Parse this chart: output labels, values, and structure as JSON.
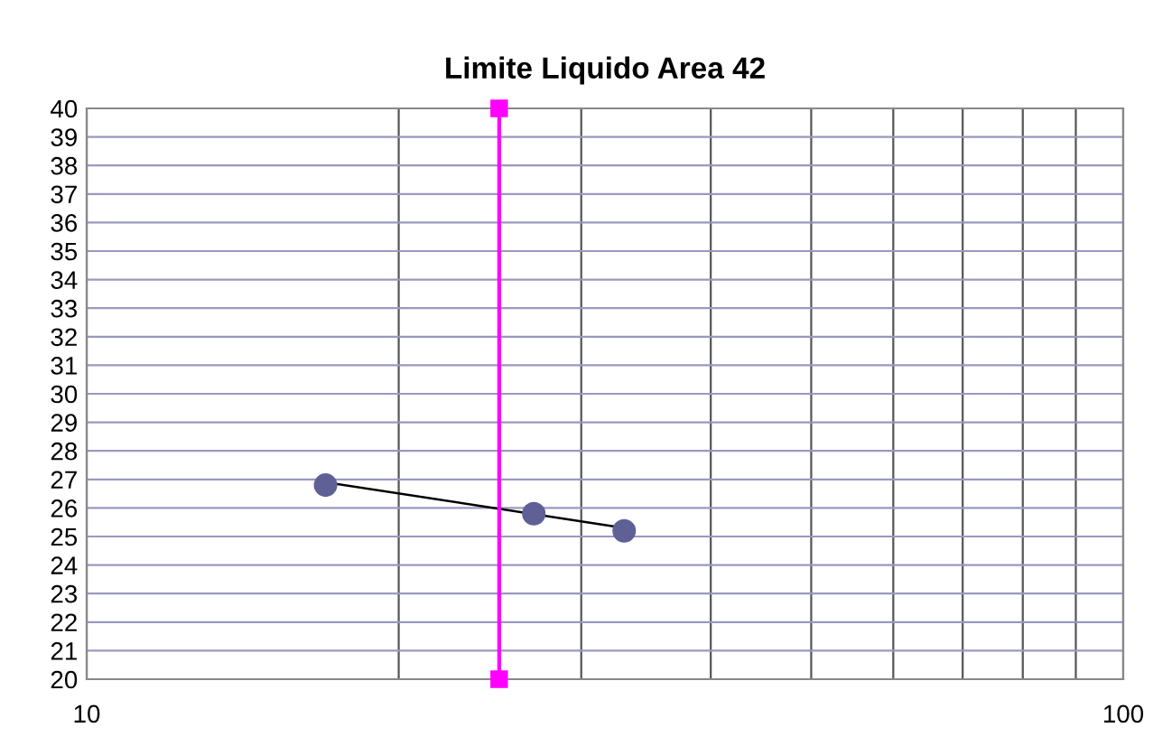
{
  "chart_data": {
    "type": "scatter",
    "title": "Limite Liquido Area 42",
    "log": "x",
    "series": [
      {
        "color": "#5f6096",
        "x": [
          17.0,
          27.0,
          33.0
        ],
        "values": [
          26.8,
          25.8,
          25.2
        ],
        "marker": "circle"
      },
      {
        "type": "line",
        "color": "#000000",
        "x": [
          17.0,
          33.0
        ],
        "values": [
          26.9,
          25.3
        ],
        "marker": "none"
      },
      {
        "type": "line",
        "color": "#ff00ff",
        "x": [
          25.0,
          25.0
        ],
        "values": [
          20,
          40
        ],
        "marker": "square"
      }
    ],
    "xlim": [
      10,
      100
    ],
    "xticks": [
      10,
      {
        "value": 20,
        "label": null
      },
      {
        "value": 30,
        "label": null
      },
      {
        "value": 40,
        "label": null
      },
      {
        "value": 50,
        "label": null
      },
      {
        "value": 60,
        "label": null
      },
      {
        "value": 70,
        "label": null
      },
      {
        "value": 80,
        "label": null
      },
      {
        "value": 90,
        "label": null
      },
      100
    ],
    "ylim": [
      20,
      40
    ],
    "yticks": [
      20,
      21,
      22,
      23,
      24,
      25,
      26,
      27,
      28,
      29,
      30,
      31,
      32,
      33,
      34,
      35,
      36,
      37,
      38,
      39,
      40
    ],
    "grid": true
  }
}
